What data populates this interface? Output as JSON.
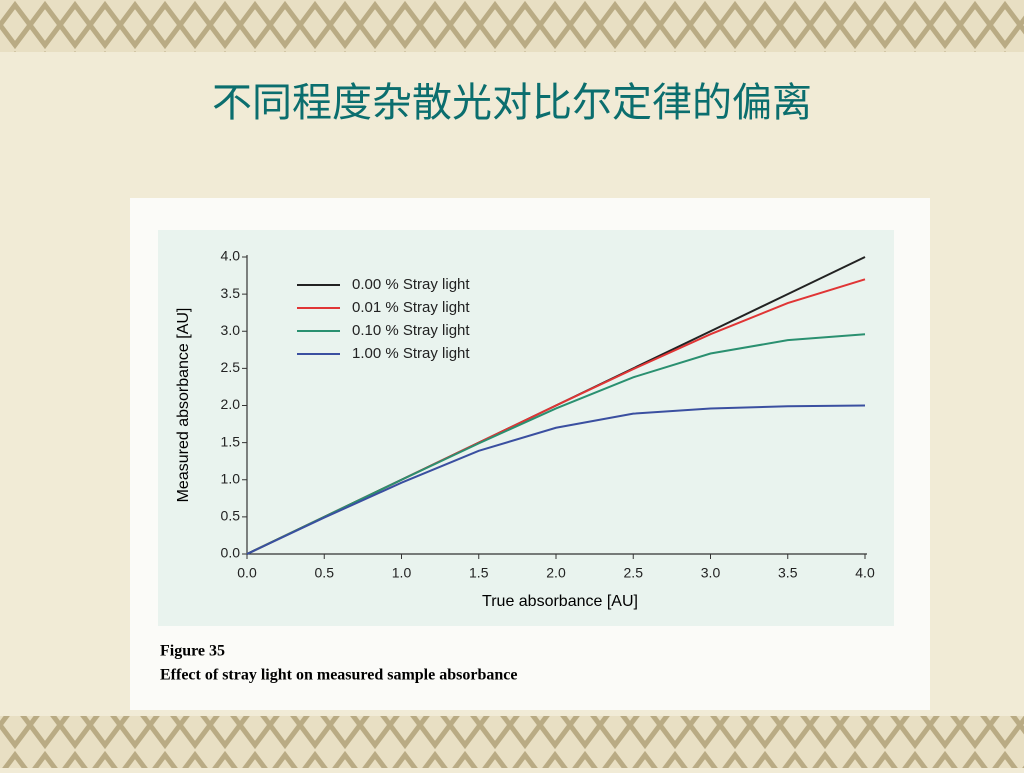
{
  "slide_title": "不同程度杂散光对比尔定律的偏离",
  "chart_data": {
    "type": "line",
    "x_label": "True absorbance [AU]",
    "y_label": "Measured absorbance [AU]",
    "x": [
      0,
      0.5,
      1,
      1.5,
      2,
      2.5,
      3,
      3.5,
      4
    ],
    "series": [
      {
        "name": "0.00 % Stray light",
        "color": "#222222",
        "values": [
          0,
          0.5,
          1,
          1.5,
          2,
          2.5,
          3,
          3.5,
          4
        ]
      },
      {
        "name": "0.01 % Stray light",
        "color": "#e03535",
        "values": [
          0,
          0.5,
          1,
          1.5,
          2,
          2.49,
          2.96,
          3.38,
          3.7
        ]
      },
      {
        "name": "0.10 % Stray light",
        "color": "#2a9070",
        "values": [
          0,
          0.5,
          1,
          1.49,
          1.96,
          2.38,
          2.7,
          2.88,
          2.96
        ]
      },
      {
        "name": "1.00 % Stray light",
        "color": "#3a4fa0",
        "values": [
          0,
          0.49,
          0.96,
          1.39,
          1.7,
          1.89,
          1.96,
          1.99,
          2
        ]
      }
    ],
    "xlim": [
      0,
      4
    ],
    "ylim": [
      0,
      4
    ],
    "xticks": [
      {
        "value": 0,
        "label": "0.0"
      },
      0.5,
      {
        "value": 1,
        "label": "1.0"
      },
      1.5,
      {
        "value": 2,
        "label": "2.0"
      },
      2.5,
      {
        "value": 3,
        "label": "3.0"
      },
      3.5,
      {
        "value": 4,
        "label": "4.0"
      }
    ],
    "yticks": [
      {
        "value": 0,
        "label": "0.0"
      },
      0.5,
      {
        "value": 1,
        "label": "1.0"
      },
      1.5,
      {
        "value": 2,
        "label": "2.0"
      },
      2.5,
      {
        "value": 3,
        "label": "3.0"
      },
      3.5,
      {
        "value": 4,
        "label": "4.0"
      }
    ],
    "legend": "upper left",
    "figure_label": "Figure 35",
    "caption": "Effect of stray light on measured sample absorbance"
  }
}
